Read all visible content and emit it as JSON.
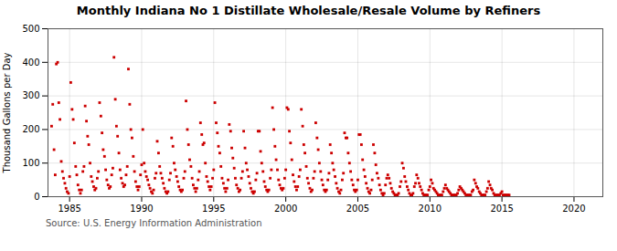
{
  "chart_data": {
    "type": "scatter",
    "title": "Monthly Indiana No 1 Distillate Wholesale/Resale Volume by Refiners",
    "ylabel": "Thousand Gallons per Day",
    "source": "Source: U.S. Energy Information Administration",
    "color": "#cc0000",
    "marker": "square",
    "grid": true,
    "xlim": [
      1983.5,
      2022
    ],
    "ylim": [
      0,
      500
    ],
    "xticks": [
      1985,
      1990,
      1995,
      2000,
      2005,
      2010,
      2015,
      2020
    ],
    "yticks": [
      0,
      100,
      200,
      300,
      400,
      500
    ],
    "x": [
      1983.75,
      1983.83,
      1983.92,
      1984.0,
      1984.08,
      1984.17,
      1984.25,
      1984.33,
      1984.42,
      1984.5,
      1984.58,
      1984.67,
      1984.75,
      1984.83,
      1984.92,
      1985.0,
      1985.08,
      1985.17,
      1985.25,
      1985.33,
      1985.42,
      1985.5,
      1985.58,
      1985.67,
      1985.75,
      1985.83,
      1985.92,
      1986.0,
      1986.08,
      1986.17,
      1986.25,
      1986.33,
      1986.42,
      1986.5,
      1986.58,
      1986.67,
      1986.75,
      1986.83,
      1986.92,
      1987.0,
      1987.08,
      1987.17,
      1987.25,
      1987.33,
      1987.42,
      1987.5,
      1987.58,
      1987.67,
      1987.75,
      1987.83,
      1987.92,
      1988.0,
      1988.08,
      1988.17,
      1988.25,
      1988.33,
      1988.42,
      1988.5,
      1988.58,
      1988.67,
      1988.75,
      1988.83,
      1988.92,
      1989.0,
      1989.08,
      1989.17,
      1989.25,
      1989.33,
      1989.42,
      1989.5,
      1989.58,
      1989.67,
      1989.75,
      1989.83,
      1989.92,
      1990.0,
      1990.08,
      1990.17,
      1990.25,
      1990.33,
      1990.42,
      1990.5,
      1990.58,
      1990.67,
      1990.75,
      1990.83,
      1990.92,
      1991.0,
      1991.08,
      1991.17,
      1991.25,
      1991.33,
      1991.42,
      1991.5,
      1991.58,
      1991.67,
      1991.75,
      1991.83,
      1991.92,
      1992.0,
      1992.08,
      1992.17,
      1992.25,
      1992.33,
      1992.42,
      1992.5,
      1992.58,
      1992.67,
      1992.75,
      1992.83,
      1992.92,
      1993.0,
      1993.08,
      1993.17,
      1993.25,
      1993.33,
      1993.42,
      1993.5,
      1993.58,
      1993.67,
      1993.75,
      1993.83,
      1993.92,
      1994.0,
      1994.08,
      1994.17,
      1994.25,
      1994.33,
      1994.42,
      1994.5,
      1994.58,
      1994.67,
      1994.75,
      1994.83,
      1994.92,
      1995.0,
      1995.08,
      1995.17,
      1995.25,
      1995.33,
      1995.42,
      1995.5,
      1995.58,
      1995.67,
      1995.75,
      1995.83,
      1995.92,
      1996.0,
      1996.08,
      1996.17,
      1996.25,
      1996.33,
      1996.42,
      1996.5,
      1996.58,
      1996.67,
      1996.75,
      1996.83,
      1996.92,
      1997.0,
      1997.08,
      1997.17,
      1997.25,
      1997.33,
      1997.42,
      1997.5,
      1997.58,
      1997.67,
      1997.75,
      1997.83,
      1997.92,
      1998.0,
      1998.08,
      1998.17,
      1998.25,
      1998.33,
      1998.42,
      1998.5,
      1998.58,
      1998.67,
      1998.75,
      1998.83,
      1998.92,
      1999.0,
      1999.08,
      1999.17,
      1999.25,
      1999.33,
      1999.42,
      1999.5,
      1999.58,
      1999.67,
      1999.75,
      1999.83,
      1999.92,
      2000.0,
      2000.08,
      2000.17,
      2000.25,
      2000.33,
      2000.42,
      2000.5,
      2000.58,
      2000.67,
      2000.75,
      2000.83,
      2000.92,
      2001.0,
      2001.08,
      2001.17,
      2001.25,
      2001.33,
      2001.42,
      2001.5,
      2001.58,
      2001.67,
      2001.75,
      2001.83,
      2001.92,
      2002.0,
      2002.08,
      2002.17,
      2002.25,
      2002.33,
      2002.42,
      2002.5,
      2002.58,
      2002.67,
      2002.75,
      2002.83,
      2002.92,
      2003.0,
      2003.08,
      2003.17,
      2003.25,
      2003.33,
      2003.42,
      2003.5,
      2003.58,
      2003.67,
      2003.75,
      2003.83,
      2003.92,
      2004.0,
      2004.08,
      2004.17,
      2004.25,
      2004.33,
      2004.42,
      2004.5,
      2004.58,
      2004.67,
      2004.75,
      2004.83,
      2004.92,
      2005.0,
      2005.08,
      2005.17,
      2005.25,
      2005.33,
      2005.42,
      2005.5,
      2005.58,
      2005.67,
      2005.75,
      2005.83,
      2005.92,
      2006.0,
      2006.08,
      2006.17,
      2006.25,
      2006.33,
      2006.42,
      2006.5,
      2006.58,
      2006.67,
      2006.75,
      2006.83,
      2006.92,
      2007.0,
      2007.08,
      2007.17,
      2007.25,
      2007.33,
      2007.42,
      2007.5,
      2007.58,
      2007.67,
      2007.75,
      2007.83,
      2007.92,
      2008.0,
      2008.08,
      2008.17,
      2008.25,
      2008.33,
      2008.42,
      2008.5,
      2008.58,
      2008.67,
      2008.75,
      2008.83,
      2008.92,
      2009.0,
      2009.08,
      2009.17,
      2009.25,
      2009.33,
      2009.42,
      2009.5,
      2009.58,
      2009.67,
      2009.75,
      2009.83,
      2009.92,
      2010.0,
      2010.08,
      2010.17,
      2010.25,
      2010.33,
      2010.42,
      2010.5,
      2010.58,
      2010.67,
      2010.75,
      2010.83,
      2010.92,
      2011.0,
      2011.08,
      2011.17,
      2011.25,
      2011.33,
      2011.42,
      2011.5,
      2011.58,
      2011.67,
      2011.75,
      2011.83,
      2011.92,
      2012.0,
      2012.08,
      2012.17,
      2012.25,
      2012.33,
      2012.42,
      2012.5,
      2012.58,
      2012.67,
      2012.75,
      2012.83,
      2012.92,
      2013.0,
      2013.08,
      2013.17,
      2013.25,
      2013.33,
      2013.42,
      2013.5,
      2013.58,
      2013.67,
      2013.75,
      2013.83,
      2013.92,
      2014.0,
      2014.08,
      2014.17,
      2014.25,
      2014.33,
      2014.42,
      2014.5,
      2014.58,
      2014.67,
      2014.75,
      2014.83,
      2014.92,
      2015.0,
      2015.08,
      2015.17,
      2015.25,
      2015.33,
      2015.42,
      2015.5
    ],
    "values": [
      210,
      275,
      140,
      65,
      395,
      400,
      280,
      230,
      105,
      75,
      55,
      40,
      25,
      15,
      10,
      60,
      340,
      260,
      230,
      160,
      90,
      65,
      35,
      20,
      10,
      20,
      75,
      90,
      270,
      225,
      180,
      155,
      100,
      60,
      45,
      30,
      20,
      25,
      55,
      75,
      280,
      240,
      190,
      140,
      120,
      80,
      50,
      35,
      25,
      30,
      65,
      85,
      415,
      290,
      210,
      180,
      130,
      80,
      55,
      40,
      30,
      35,
      65,
      90,
      380,
      275,
      200,
      175,
      120,
      75,
      45,
      30,
      20,
      30,
      65,
      95,
      200,
      100,
      75,
      60,
      50,
      35,
      25,
      15,
      10,
      20,
      55,
      70,
      165,
      130,
      90,
      70,
      55,
      40,
      25,
      15,
      10,
      15,
      50,
      70,
      175,
      150,
      100,
      80,
      60,
      45,
      30,
      20,
      15,
      20,
      55,
      75,
      285,
      200,
      155,
      110,
      90,
      55,
      35,
      25,
      15,
      25,
      50,
      75,
      220,
      185,
      155,
      160,
      100,
      60,
      45,
      30,
      20,
      30,
      55,
      80,
      280,
      220,
      190,
      150,
      130,
      90,
      55,
      40,
      25,
      15,
      25,
      50,
      215,
      195,
      145,
      115,
      85,
      55,
      35,
      25,
      15,
      20,
      55,
      75,
      195,
      145,
      100,
      80,
      60,
      40,
      25,
      15,
      10,
      15,
      50,
      70,
      195,
      195,
      135,
      100,
      75,
      45,
      30,
      20,
      15,
      20,
      55,
      80,
      265,
      200,
      150,
      110,
      80,
      50,
      35,
      25,
      20,
      25,
      55,
      80,
      265,
      260,
      195,
      160,
      110,
      65,
      45,
      30,
      20,
      30,
      60,
      80,
      260,
      210,
      155,
      130,
      90,
      55,
      40,
      25,
      15,
      20,
      55,
      75,
      220,
      175,
      140,
      100,
      75,
      50,
      35,
      20,
      15,
      20,
      50,
      70,
      155,
      130,
      100,
      80,
      60,
      40,
      25,
      15,
      10,
      20,
      50,
      70,
      190,
      175,
      175,
      130,
      100,
      75,
      50,
      35,
      20,
      15,
      20,
      50,
      185,
      185,
      155,
      110,
      80,
      60,
      40,
      25,
      15,
      10,
      20,
      50,
      155,
      130,
      95,
      70,
      55,
      35,
      20,
      10,
      5,
      10,
      35,
      55,
      65,
      55,
      40,
      25,
      15,
      10,
      5,
      5,
      5,
      10,
      30,
      45,
      100,
      85,
      60,
      45,
      30,
      20,
      10,
      5,
      5,
      10,
      30,
      40,
      65,
      55,
      40,
      30,
      20,
      10,
      5,
      5,
      5,
      5,
      20,
      30,
      50,
      40,
      25,
      20,
      15,
      10,
      5,
      5,
      5,
      5,
      15,
      25,
      35,
      25,
      20,
      15,
      10,
      5,
      5,
      5,
      5,
      5,
      10,
      20,
      30,
      25,
      20,
      15,
      10,
      5,
      5,
      5,
      5,
      5,
      15,
      20,
      50,
      40,
      30,
      25,
      15,
      10,
      5,
      5,
      5,
      5,
      15,
      25,
      45,
      35,
      25,
      20,
      10,
      5,
      5,
      5,
      5,
      5,
      10,
      15,
      5,
      5,
      5,
      5,
      5,
      5
    ]
  }
}
